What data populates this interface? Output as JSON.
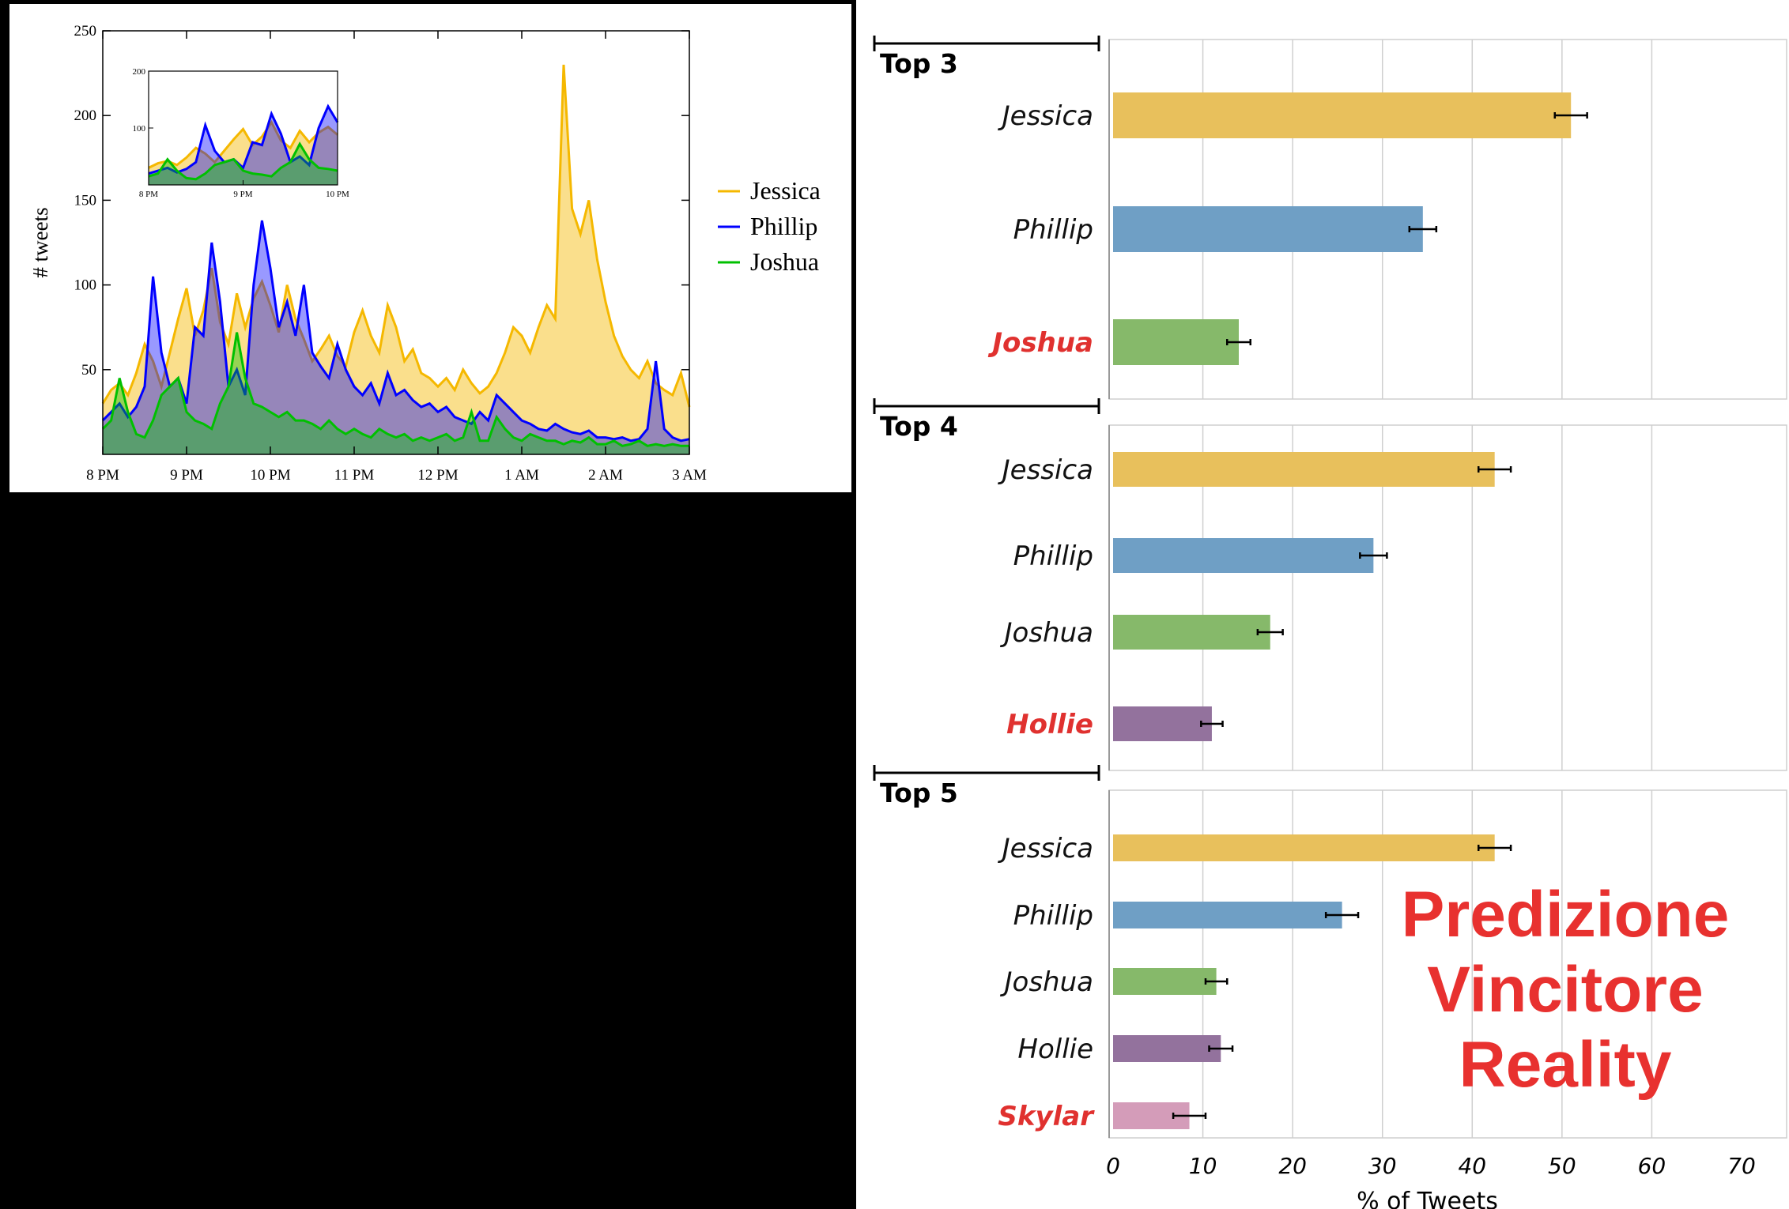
{
  "colors": {
    "jessica": "#f5b800",
    "phillip": "#0000ff",
    "joshua": "#00c000",
    "bar_jessica": "#e8c05c",
    "bar_phillip": "#6f9fc5",
    "bar_joshua": "#86b96a",
    "bar_hollie": "#93729d",
    "bar_skylar": "#d49cb9",
    "highlight_red": "#e0312f"
  },
  "chart_data": [
    {
      "type": "area",
      "title": "",
      "xlabel": "",
      "ylabel": "# tweets",
      "ylim": [
        0,
        250
      ],
      "x_ticks": [
        "8 PM",
        "9 PM",
        "10 PM",
        "11 PM",
        "12 PM",
        "1 AM",
        "2 AM",
        "3 AM"
      ],
      "y_ticks": [
        "250",
        "200",
        "150",
        "100",
        "50"
      ],
      "legend": {
        "placement": "right-outside",
        "entries": [
          "Jessica",
          "Phillip",
          "Joshua"
        ]
      },
      "x_hours": [
        0,
        0.1,
        0.2,
        0.3,
        0.4,
        0.5,
        0.6,
        0.7,
        0.8,
        0.9,
        1.0,
        1.1,
        1.2,
        1.3,
        1.4,
        1.5,
        1.6,
        1.7,
        1.8,
        1.9,
        2.0,
        2.1,
        2.2,
        2.3,
        2.4,
        2.5,
        2.6,
        2.7,
        2.8,
        2.9,
        3.0,
        3.1,
        3.2,
        3.3,
        3.4,
        3.5,
        3.6,
        3.7,
        3.8,
        3.9,
        4.0,
        4.1,
        4.2,
        4.3,
        4.4,
        4.5,
        4.6,
        4.7,
        4.8,
        4.9,
        5.0,
        5.1,
        5.2,
        5.3,
        5.4,
        5.5,
        5.6,
        5.7,
        5.8,
        5.9,
        6.0,
        6.1,
        6.2,
        6.3,
        6.4,
        6.5,
        6.6,
        6.7,
        6.8,
        6.9,
        7.0
      ],
      "series": [
        {
          "name": "Jessica",
          "values": [
            30,
            38,
            42,
            35,
            48,
            65,
            55,
            40,
            60,
            80,
            98,
            70,
            85,
            110,
            78,
            65,
            95,
            75,
            92,
            102,
            88,
            72,
            100,
            80,
            68,
            55,
            62,
            70,
            58,
            52,
            72,
            85,
            70,
            60,
            88,
            75,
            55,
            62,
            48,
            45,
            40,
            45,
            38,
            50,
            42,
            36,
            40,
            48,
            60,
            75,
            70,
            60,
            75,
            88,
            80,
            230,
            145,
            130,
            150,
            115,
            90,
            70,
            58,
            50,
            45,
            55,
            42,
            38,
            35,
            48,
            28
          ]
        },
        {
          "name": "Phillip",
          "values": [
            20,
            25,
            30,
            22,
            28,
            40,
            105,
            60,
            40,
            45,
            30,
            75,
            70,
            125,
            90,
            40,
            50,
            35,
            100,
            138,
            110,
            75,
            90,
            70,
            100,
            60,
            52,
            45,
            65,
            50,
            40,
            35,
            42,
            30,
            48,
            35,
            38,
            32,
            28,
            30,
            25,
            28,
            22,
            20,
            18,
            25,
            20,
            35,
            30,
            25,
            20,
            18,
            15,
            14,
            18,
            15,
            13,
            12,
            14,
            10,
            10,
            9,
            10,
            8,
            9,
            15,
            55,
            15,
            10,
            8,
            9
          ]
        },
        {
          "name": "Joshua",
          "values": [
            15,
            20,
            45,
            25,
            12,
            10,
            20,
            35,
            40,
            45,
            25,
            20,
            18,
            15,
            30,
            40,
            72,
            45,
            30,
            28,
            25,
            22,
            25,
            20,
            20,
            18,
            15,
            20,
            15,
            12,
            15,
            12,
            10,
            15,
            12,
            10,
            12,
            8,
            10,
            8,
            10,
            12,
            8,
            10,
            25,
            8,
            8,
            22,
            15,
            10,
            8,
            12,
            10,
            8,
            8,
            6,
            8,
            7,
            10,
            6,
            6,
            8,
            5,
            6,
            8,
            5,
            6,
            5,
            6,
            5,
            5
          ]
        }
      ],
      "inset": {
        "type": "area",
        "x_ticks": [
          "8 PM",
          "9 PM",
          "10 PM"
        ],
        "y_ticks": [
          "200",
          "100"
        ],
        "ylim": [
          0,
          200
        ],
        "x_hours": [
          0,
          0.1,
          0.2,
          0.3,
          0.4,
          0.5,
          0.6,
          0.7,
          0.8,
          0.9,
          1.0,
          1.1,
          1.2,
          1.3,
          1.4,
          1.5,
          1.6,
          1.7,
          1.8,
          1.9,
          2.0
        ],
        "series": [
          {
            "name": "Jessica",
            "values": [
              30,
              38,
              42,
              35,
              48,
              65,
              55,
              40,
              60,
              80,
              98,
              70,
              85,
              110,
              78,
              65,
              95,
              75,
              92,
              102,
              88
            ]
          },
          {
            "name": "Phillip",
            "values": [
              20,
              25,
              30,
              22,
              28,
              40,
              105,
              60,
              40,
              45,
              30,
              75,
              70,
              125,
              90,
              40,
              50,
              35,
              100,
              138,
              110
            ]
          },
          {
            "name": "Joshua",
            "values": [
              15,
              20,
              45,
              25,
              12,
              10,
              20,
              35,
              40,
              45,
              25,
              20,
              18,
              15,
              30,
              40,
              72,
              45,
              30,
              28,
              25
            ]
          }
        ]
      }
    },
    {
      "type": "bar",
      "orientation": "horizontal",
      "title": "",
      "xlabel": "% of Tweets",
      "xlim": [
        0,
        70
      ],
      "x_ticks": [
        "0",
        "10",
        "20",
        "30",
        "40",
        "50",
        "60",
        "70"
      ],
      "groups": [
        {
          "label": "Top 3",
          "categories": [
            "Jessica",
            "Phillip",
            "Joshua"
          ],
          "values": [
            51,
            34.5,
            14
          ],
          "errors": [
            1.8,
            1.5,
            1.3
          ],
          "highlighted": [
            false,
            false,
            true
          ]
        },
        {
          "label": "Top 4",
          "categories": [
            "Jessica",
            "Phillip",
            "Joshua",
            "Hollie"
          ],
          "values": [
            42.5,
            29,
            17.5,
            11
          ],
          "errors": [
            1.8,
            1.5,
            1.4,
            1.2
          ],
          "highlighted": [
            false,
            false,
            false,
            true
          ]
        },
        {
          "label": "Top 5",
          "categories": [
            "Jessica",
            "Phillip",
            "Joshua",
            "Hollie",
            "Skylar"
          ],
          "values": [
            42.5,
            25.5,
            11.5,
            12,
            8.5
          ],
          "errors": [
            1.8,
            1.8,
            1.2,
            1.3,
            1.8
          ],
          "highlighted": [
            false,
            false,
            false,
            false,
            true
          ]
        }
      ]
    }
  ],
  "overlay_text": [
    "Predizione",
    "Vincitore",
    "Reality"
  ]
}
